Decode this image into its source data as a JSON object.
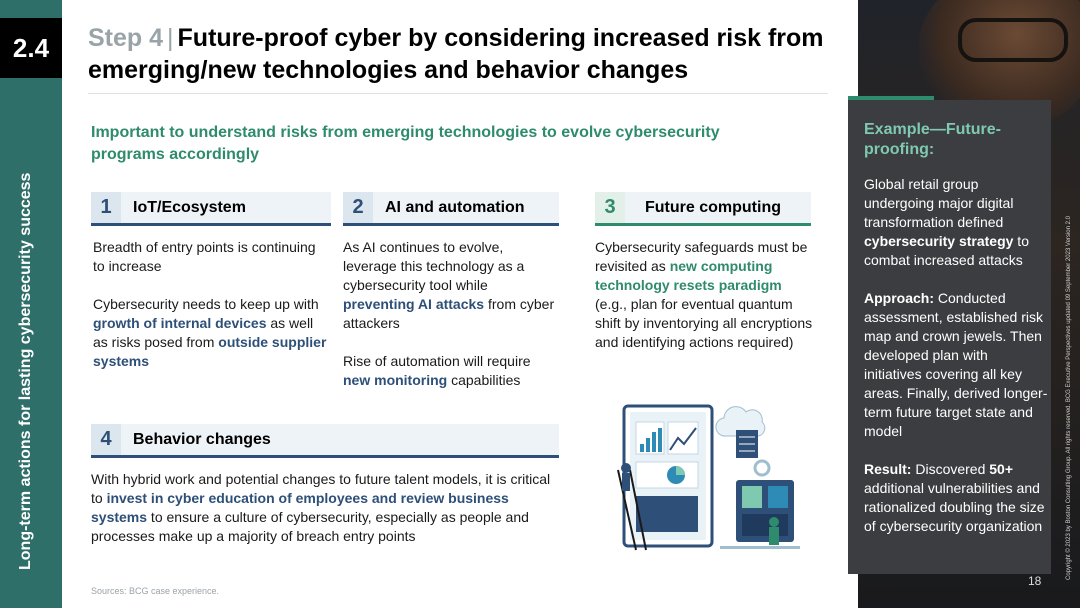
{
  "section": {
    "number": "2.4",
    "vertical_title": "Long-term actions for lasting cybersecurity success"
  },
  "header": {
    "step": "Step 4",
    "separator": "|",
    "title": "Future-proof cyber by considering increased risk from emerging/new technologies and behavior changes"
  },
  "intro": "Important to understand risks from emerging technologies to evolve cybersecurity programs accordingly",
  "pillars": [
    {
      "num": "1",
      "label": "IoT/Ecosystem",
      "p1": "Breadth of entry points is continuing to increase",
      "p2_a": "Cybersecurity needs to keep up with ",
      "p2_hl1": "growth of internal devices",
      "p2_b": " as well as risks posed from ",
      "p2_hl2": "outside supplier systems"
    },
    {
      "num": "2",
      "label": "AI and automation",
      "p1_a": "As AI continues to evolve, leverage this technology as a cybersecurity tool while ",
      "p1_hl": "preventing AI attacks",
      "p1_b": " from cyber attackers",
      "p2_a": "Rise of automation will require ",
      "p2_hl": "new monitoring",
      "p2_b": " capabilities"
    },
    {
      "num": "3",
      "label": "Future computing",
      "p1_a": "Cybersecurity safeguards must be revisited as ",
      "p1_hl": "new computing technology resets paradigm",
      "p1_b": " (e.g., plan for eventual quantum shift by inventorying all encryptions and identifying actions required)"
    },
    {
      "num": "4",
      "label": "Behavior changes",
      "p1_a": "With hybrid work and potential changes to future talent models, it is critical to ",
      "p1_hl": "invest in cyber education of employees and review business systems",
      "p1_b": " to ensure a culture of cybersecurity, especially as people and processes make up a majority of breach entry points"
    }
  ],
  "example": {
    "title": "Example—Future-proofing:",
    "intro_a": "Global retail group undergoing major digital transformation defined ",
    "intro_b": "cybersecurity strategy",
    "intro_c": " to combat increased attacks",
    "approach_label": "Approach:",
    "approach_text": " Conducted assessment, established risk map and crown jewels. Then developed plan with initiatives covering all key areas. Finally, derived longer-term future target state and model",
    "result_label": "Result:",
    "result_a": " Discovered ",
    "result_num": "50+",
    "result_b": " additional vulnerabilities and rationalized doubling the size of cybersecurity organization"
  },
  "sources": "Sources: BCG case experience.",
  "page_number": "18",
  "copyright": "Copyright © 2023 by Boston Consulting Group. All rights reserved. BCG Executive Perspectives updated 09 September 2023 Version 2.0",
  "colors": {
    "teal": "#2f6f6a",
    "green": "#2e8b6d",
    "navy": "#2e4f78",
    "panel": "#3c3d40"
  }
}
